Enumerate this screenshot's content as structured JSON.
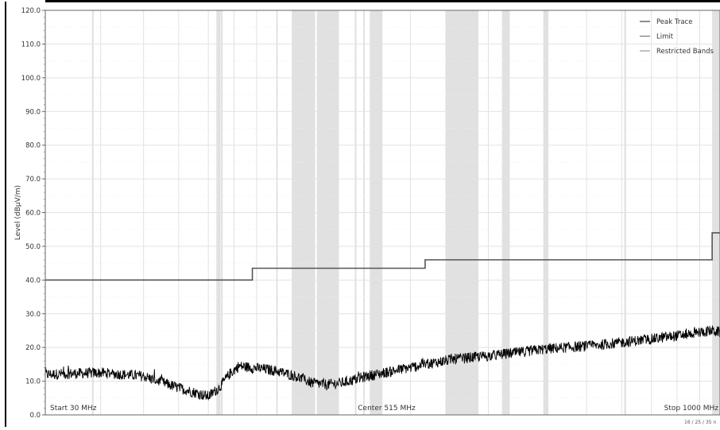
{
  "chart_data": {
    "type": "line",
    "ylabel": "Level (dBµV/m)",
    "ylim": [
      0,
      120
    ],
    "yticks": [
      0,
      10,
      20,
      30,
      40,
      50,
      60,
      70,
      80,
      90,
      100,
      110,
      120
    ],
    "ytick_labels": [
      "0.0",
      "10.0",
      "20.0",
      "30.0",
      "40.0",
      "50.0",
      "60.0",
      "70.0",
      "80.0",
      "90.0",
      "100.0",
      "110.0",
      "120.0"
    ],
    "x_scale": "log",
    "xlim_mhz": [
      30,
      1000
    ],
    "x_annotations": {
      "start": "Start 30 MHz",
      "center": "Center 515 MHz",
      "stop": "Stop 1000 MHz"
    },
    "corner_note": "16 / 25 / 35 n",
    "grid": true,
    "legend_position": "top-right",
    "legend": [
      "Peak Trace",
      "Limit",
      "Restricted Bands"
    ],
    "colors": {
      "peak_trace": "#000000",
      "limit": "#555555",
      "restricted_band": "#e1e1e1",
      "grid_major": "#e2e2e2",
      "grid_minor": "#f0f0f0"
    },
    "series": [
      {
        "name": "Limit",
        "style": "step",
        "x_mhz": [
          30,
          88,
          88,
          216,
          216,
          960,
          960,
          1000
        ],
        "y": [
          40,
          40,
          43.5,
          43.5,
          46,
          46,
          54,
          54
        ]
      },
      {
        "name": "Peak Trace",
        "style": "noisy",
        "x_mhz": [
          30,
          40,
          50,
          60,
          70,
          74,
          78,
          82,
          88,
          95,
          100,
          110,
          120,
          130,
          140,
          150,
          160,
          175,
          190,
          200,
          216,
          250,
          300,
          350,
          400,
          450,
          515,
          600,
          700,
          800,
          900,
          960,
          1000
        ],
        "y": [
          12,
          12.5,
          11.5,
          8,
          5.5,
          8,
          12,
          14.5,
          14,
          13.5,
          13,
          11.5,
          9.5,
          9,
          9.5,
          10.5,
          11.5,
          12.5,
          13.5,
          14,
          15,
          16.5,
          17.5,
          18.5,
          19.5,
          20,
          20.5,
          21.5,
          22.5,
          23.5,
          24.5,
          25,
          24.5
        ]
      }
    ],
    "restricted_bands_mhz": [
      [
        38.25,
        38.45
      ],
      [
        73,
        74.6
      ],
      [
        74.8,
        75.2
      ],
      [
        108,
        121.94
      ],
      [
        123,
        138
      ],
      [
        149.9,
        150.05
      ],
      [
        156.5,
        156.9
      ],
      [
        162,
        173
      ],
      [
        240,
        285
      ],
      [
        322,
        335.4
      ],
      [
        399.9,
        410
      ],
      [
        608,
        614
      ],
      [
        960,
        1000
      ]
    ]
  }
}
